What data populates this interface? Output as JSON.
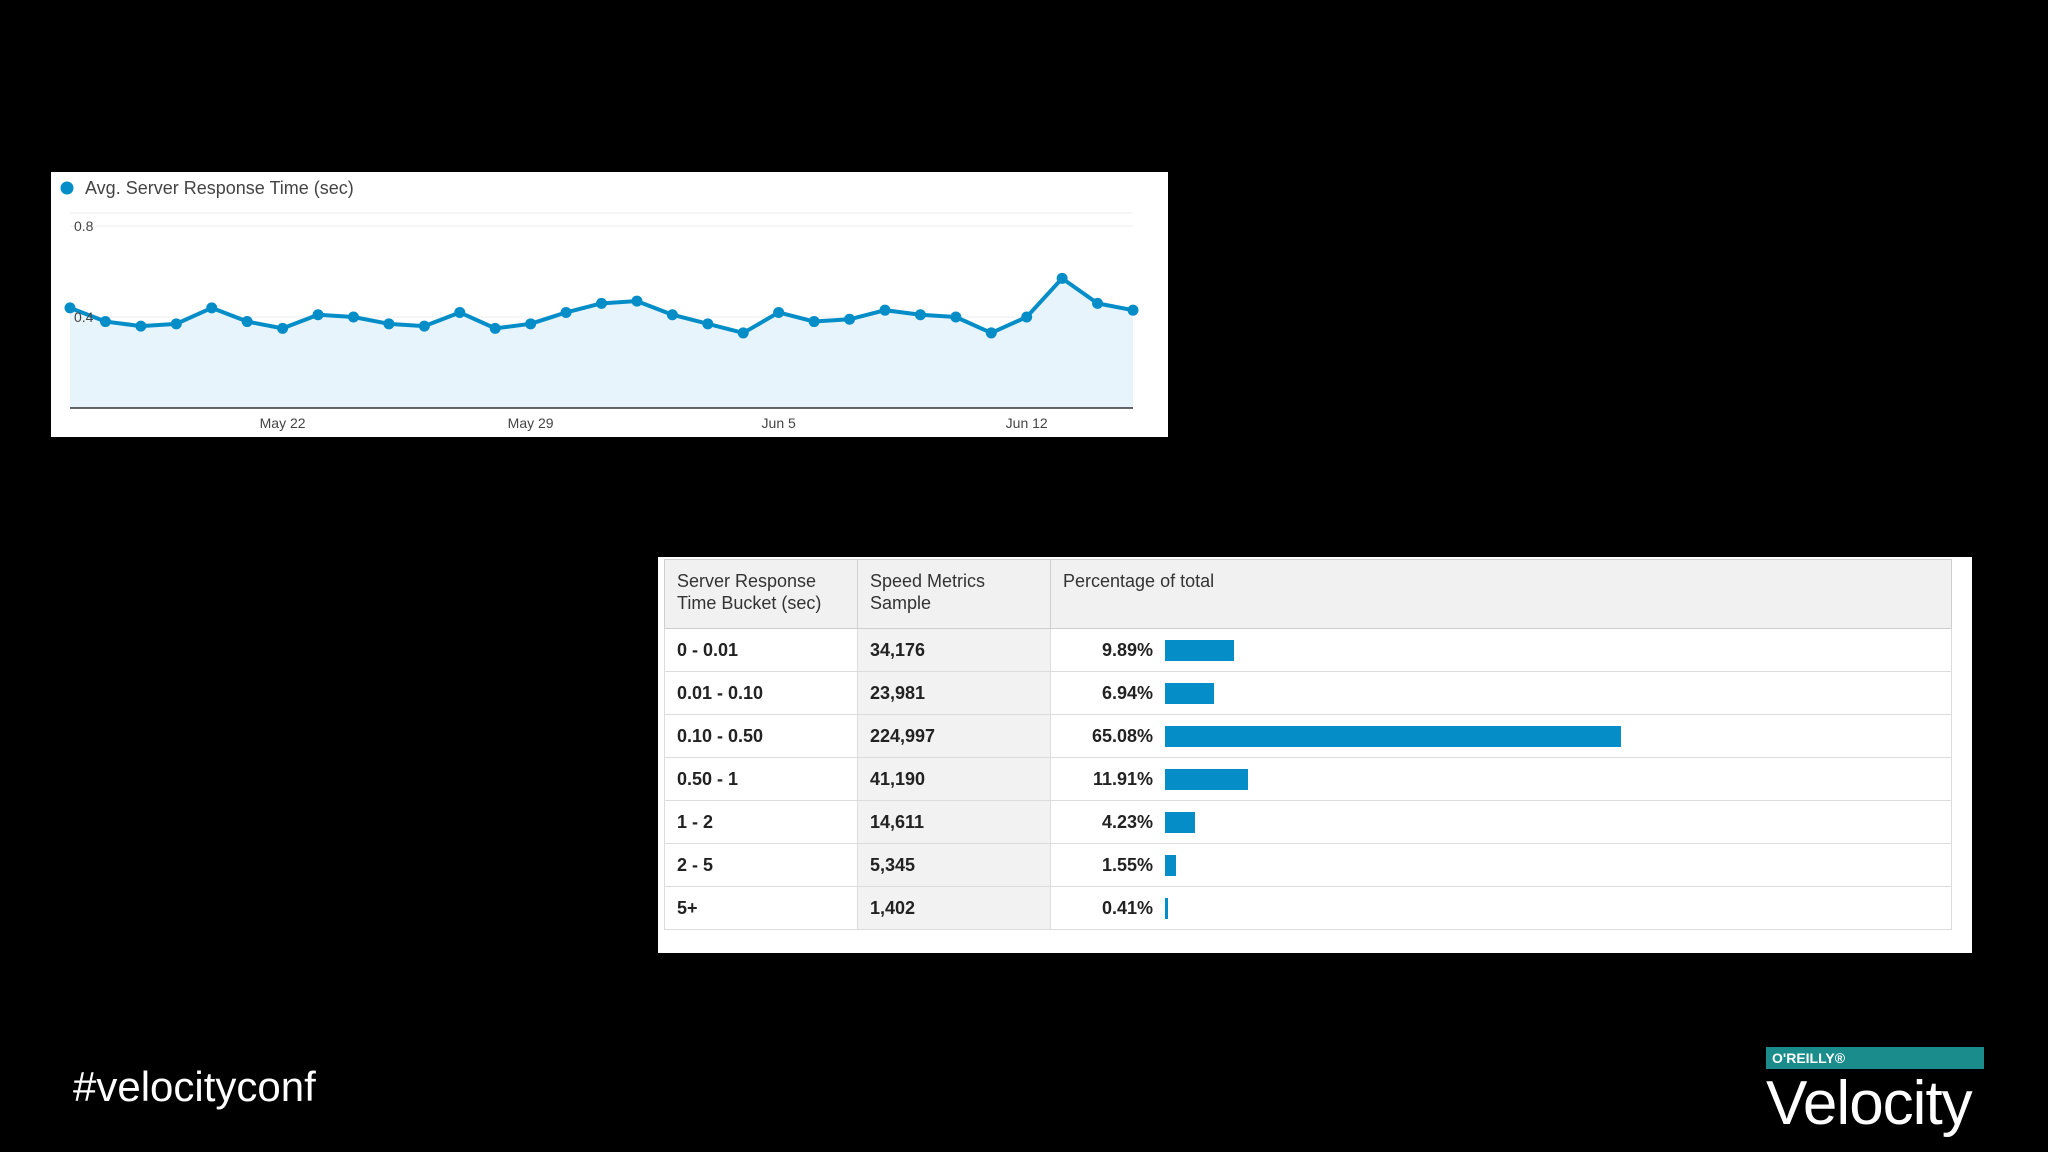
{
  "line_chart": {
    "legend_label": "Avg. Server Response Time (sec)",
    "accent_color": "#058dc7",
    "y_ticks": [
      "0.8",
      "0.4"
    ],
    "x_ticks": [
      "May 22",
      "May 29",
      "Jun 5",
      "Jun 12"
    ]
  },
  "table": {
    "headers": [
      "Server Response Time Bucket (sec)",
      "Speed Metrics Sample",
      "Percentage of total"
    ],
    "rows": [
      {
        "bucket": "0 - 0.01",
        "sample": "34,176",
        "pct": "9.89%"
      },
      {
        "bucket": "0.01 - 0.10",
        "sample": "23,981",
        "pct": "6.94%"
      },
      {
        "bucket": "0.10 - 0.50",
        "sample": "224,997",
        "pct": "65.08%"
      },
      {
        "bucket": "0.50 - 1",
        "sample": "41,190",
        "pct": "11.91%"
      },
      {
        "bucket": "1 - 2",
        "sample": "14,611",
        "pct": "4.23%"
      },
      {
        "bucket": "2 - 5",
        "sample": "5,345",
        "pct": "1.55%"
      },
      {
        "bucket": "5+",
        "sample": "1,402",
        "pct": "0.41%"
      }
    ]
  },
  "footer": {
    "hashtag": "#velocityconf",
    "brand_top": "O'REILLY®",
    "brand_name": "Velocity"
  },
  "chart_data": [
    {
      "type": "line",
      "title": "",
      "xlabel": "",
      "ylabel": "",
      "ylim": [
        0,
        0.8
      ],
      "x_ticks": [
        "May 22",
        "May 29",
        "Jun 5",
        "Jun 12"
      ],
      "series": [
        {
          "name": "Avg. Server Response Time (sec)",
          "x": [
            "May 16",
            "May 17",
            "May 18",
            "May 19",
            "May 20",
            "May 21",
            "May 22",
            "May 23",
            "May 24",
            "May 25",
            "May 26",
            "May 27",
            "May 28",
            "May 29",
            "May 30",
            "May 31",
            "Jun 1",
            "Jun 2",
            "Jun 3",
            "Jun 4",
            "Jun 5",
            "Jun 6",
            "Jun 7",
            "Jun 8",
            "Jun 9",
            "Jun 10",
            "Jun 11",
            "Jun 12",
            "Jun 13",
            "Jun 14",
            "Jun 15"
          ],
          "values": [
            0.44,
            0.38,
            0.36,
            0.37,
            0.44,
            0.38,
            0.35,
            0.41,
            0.4,
            0.37,
            0.36,
            0.42,
            0.35,
            0.37,
            0.42,
            0.46,
            0.47,
            0.41,
            0.37,
            0.33,
            0.42,
            0.38,
            0.39,
            0.43,
            0.41,
            0.4,
            0.33,
            0.4,
            0.57,
            0.46,
            0.43
          ]
        }
      ]
    },
    {
      "type": "bar",
      "title": "",
      "categories": [
        "0 - 0.01",
        "0.01 - 0.10",
        "0.10 - 0.50",
        "0.50 - 1",
        "1 - 2",
        "2 - 5",
        "5+"
      ],
      "series": [
        {
          "name": "Percentage of total",
          "values": [
            9.89,
            6.94,
            65.08,
            11.91,
            4.23,
            1.55,
            0.41
          ]
        }
      ],
      "xlabel": "",
      "ylabel": ""
    }
  ]
}
